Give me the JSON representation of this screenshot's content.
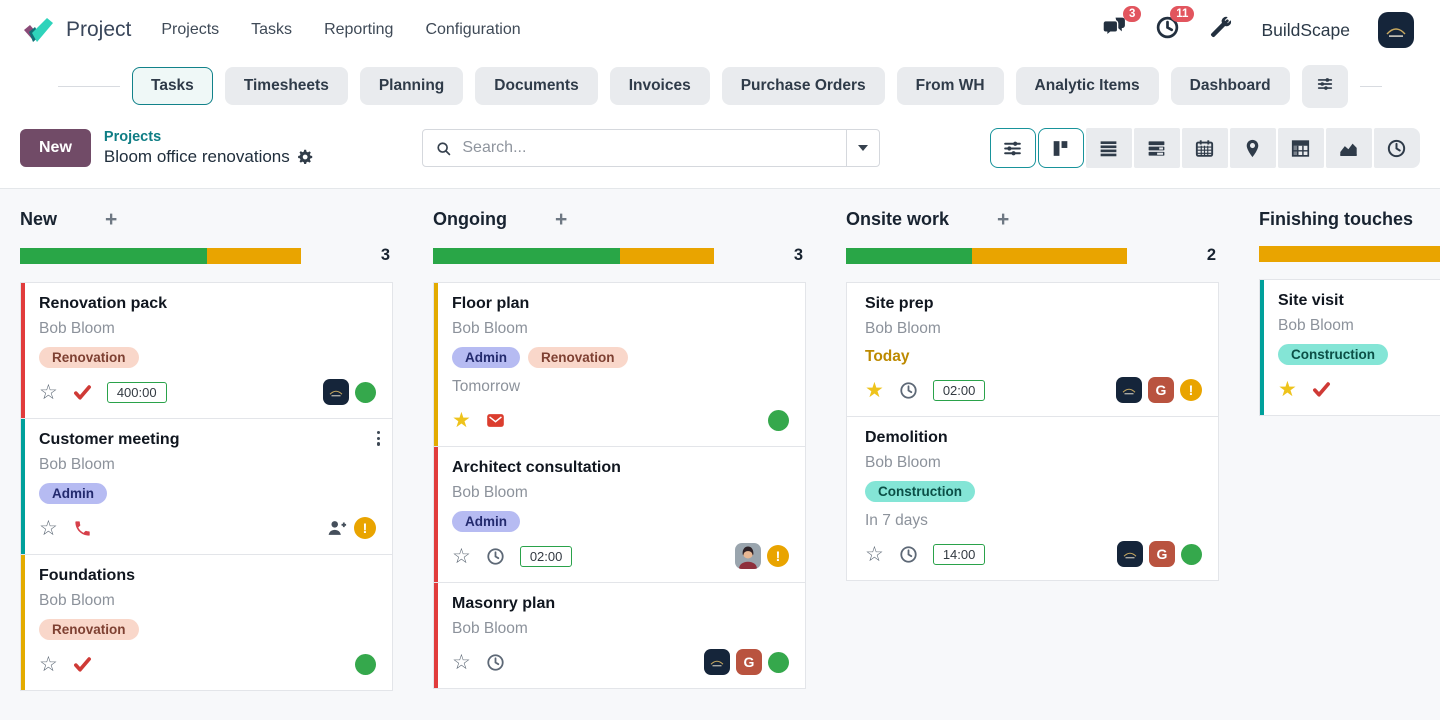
{
  "app": {
    "title": "Project",
    "menu": [
      "Projects",
      "Tasks",
      "Reporting",
      "Configuration"
    ]
  },
  "topbar": {
    "messages_badge": "3",
    "activities_badge": "11",
    "company": "BuildScape",
    "icons": [
      "chat-icon",
      "clock-icon",
      "tools-icon",
      "company-avatar"
    ]
  },
  "tabs": {
    "active": "Tasks",
    "items": [
      "Tasks",
      "Timesheets",
      "Planning",
      "Documents",
      "Invoices",
      "Purchase Orders",
      "From WH",
      "Analytic Items",
      "Dashboard"
    ],
    "extra_icon": "sliders-icon"
  },
  "control": {
    "new_button": "New",
    "breadcrumb": {
      "parent": "Projects",
      "current": "Bloom office renovations",
      "gear": "gear-icon"
    },
    "search": {
      "placeholder": "Search...",
      "icon": "search-icon",
      "caret": "caret-down-icon"
    },
    "view_switcher": [
      {
        "icon": "filters-icon",
        "active": true
      },
      {
        "icon": "kanban-icon",
        "active": true
      },
      {
        "icon": "list-icon",
        "active": false
      },
      {
        "icon": "activity-rows-icon",
        "active": false
      },
      {
        "icon": "calendar-icon",
        "active": false
      },
      {
        "icon": "map-pin-icon",
        "active": false
      },
      {
        "icon": "pivot-icon",
        "active": false
      },
      {
        "icon": "graph-icon",
        "active": false
      },
      {
        "icon": "clock-icon",
        "active": false
      }
    ]
  },
  "colors": {
    "accent": {
      "red": "#e13c3c",
      "teal": "#00a09b",
      "amber": "#e3ab00",
      "none": "transparent"
    },
    "progress_green": "#29a647",
    "progress_orange": "#e9a400",
    "green_dot": "#35a84c",
    "orange_exclamation": "#e9a400",
    "new_button_bg": "#714b67",
    "link_teal": "#0e7d84",
    "tags": {
      "renovation": {
        "bg": "#f9d7ca",
        "text": "#7e4032"
      },
      "admin": {
        "bg": "#b6bbf2",
        "text": "#232a6e"
      },
      "construction": {
        "bg": "#84e5d6",
        "text": "#0b4f46"
      }
    }
  },
  "avatars": {
    "g_label": "G",
    "exclamation_label": "!"
  },
  "board": {
    "columns": [
      {
        "title": "New",
        "count": "3",
        "progress": {
          "green_pct": 66.5,
          "orange_pct": 33.5
        },
        "cards": [
          {
            "title": "Renovation pack",
            "owner": "Bob Bloom",
            "accent": "red",
            "tags": [
              {
                "label": "Renovation",
                "type": "renovation"
              }
            ],
            "footer": {
              "icons": [
                "star-outline",
                "check-icon"
              ],
              "time": "400:00",
              "right": [
                "logo-avatar",
                "green-dot"
              ]
            }
          },
          {
            "title": "Customer meeting",
            "owner": "Bob Bloom",
            "accent": "teal",
            "kebab": true,
            "tags": [
              {
                "label": "Admin",
                "type": "admin"
              }
            ],
            "footer": {
              "icons": [
                "star-outline",
                "phone-icon"
              ],
              "right": [
                "person-plus-icon",
                "orange-exclamation"
              ]
            }
          },
          {
            "title": "Foundations",
            "owner": "Bob Bloom",
            "accent": "amber",
            "tags": [
              {
                "label": "Renovation",
                "type": "renovation"
              }
            ],
            "footer": {
              "icons": [
                "star-outline",
                "check-icon"
              ],
              "right": [
                "green-dot"
              ]
            }
          }
        ]
      },
      {
        "title": "Ongoing",
        "count": "3",
        "progress": {
          "green_pct": 66.5,
          "orange_pct": 33.5
        },
        "cards": [
          {
            "title": "Floor plan",
            "owner": "Bob Bloom",
            "accent": "amber",
            "tags": [
              {
                "label": "Admin",
                "type": "admin"
              },
              {
                "label": "Renovation",
                "type": "renovation"
              }
            ],
            "deadline": {
              "text": "Tomorrow",
              "warning": false
            },
            "footer": {
              "icons": [
                "star-filled",
                "envelope-icon"
              ],
              "right": [
                "green-dot"
              ]
            }
          },
          {
            "title": "Architect consultation",
            "owner": "Bob Bloom",
            "accent": "red",
            "tags": [
              {
                "label": "Admin",
                "type": "admin"
              }
            ],
            "footer": {
              "icons": [
                "star-outline",
                "clock-icon"
              ],
              "time": "02:00",
              "right": [
                "photo-avatar",
                "orange-exclamation"
              ]
            }
          },
          {
            "title": "Masonry plan",
            "owner": "Bob Bloom",
            "accent": "red",
            "tags": [],
            "footer": {
              "icons": [
                "star-outline",
                "clock-icon"
              ],
              "right": [
                "logo-avatar",
                "g-avatar",
                "green-dot"
              ]
            }
          }
        ]
      },
      {
        "title": "Onsite work",
        "count": "2",
        "progress": {
          "green_pct": 45,
          "orange_pct": 55
        },
        "cards": [
          {
            "title": "Site prep",
            "owner": "Bob Bloom",
            "accent": "none",
            "tags": [],
            "deadline": {
              "text": "Today",
              "warning": true
            },
            "footer": {
              "icons": [
                "star-filled",
                "clock-icon"
              ],
              "time": "02:00",
              "right": [
                "logo-avatar",
                "g-avatar",
                "orange-exclamation"
              ]
            }
          },
          {
            "title": "Demolition",
            "owner": "Bob Bloom",
            "accent": "none",
            "tags": [
              {
                "label": "Construction",
                "type": "construction"
              }
            ],
            "deadline": {
              "text": "In 7 days",
              "warning": false
            },
            "footer": {
              "icons": [
                "star-outline",
                "clock-icon"
              ],
              "time": "14:00",
              "right": [
                "logo-avatar",
                "g-avatar",
                "green-dot"
              ]
            }
          }
        ]
      },
      {
        "title": "Finishing touches",
        "count": "",
        "progress": {
          "green_pct": 0,
          "orange_pct": 100
        },
        "cards": [
          {
            "title": "Site visit",
            "owner": "Bob Bloom",
            "accent": "teal",
            "tags": [
              {
                "label": "Construction",
                "type": "construction"
              }
            ],
            "footer": {
              "icons": [
                "star-filled",
                "check-icon"
              ],
              "right": []
            }
          }
        ]
      }
    ]
  }
}
